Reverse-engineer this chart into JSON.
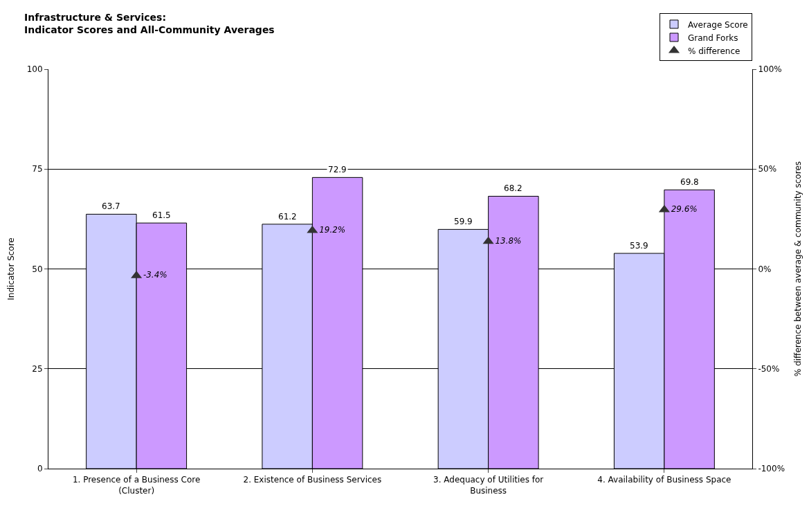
{
  "chart_data": {
    "type": "bar",
    "title": "Infrastructure & Services:\nIndicator Scores and All-Community Averages",
    "categories": [
      "1. Presence of a Business Core (Cluster)",
      "2. Existence of Business Services",
      "3. Adequacy of Utilities for Business",
      "4. Availability of Business Space"
    ],
    "series": [
      {
        "name": "Average Score",
        "color": "#ccccff",
        "values": [
          63.7,
          61.2,
          59.9,
          53.9
        ],
        "value_labels": [
          "63.7",
          "61.2",
          "59.9",
          "53.9"
        ]
      },
      {
        "name": "Grand Forks",
        "color": "#cc99ff",
        "values": [
          61.5,
          72.9,
          68.2,
          69.8
        ],
        "value_labels": [
          "61.5",
          "72.9",
          "68.2",
          "69.8"
        ]
      },
      {
        "name": "% difference",
        "type": "scatter",
        "axis": "y2",
        "marker": "triangle",
        "color": "#333333",
        "values": [
          -3.4,
          19.2,
          13.8,
          29.6
        ],
        "value_labels": [
          "-3.4%",
          "19.2%",
          "13.8%",
          "29.6%"
        ]
      }
    ],
    "ylabel": "Indicator Score",
    "y2label": "% difference between average & community scores",
    "ylim": [
      0,
      100
    ],
    "yticks": [
      0,
      25,
      50,
      75,
      100
    ],
    "y2lim": [
      -100,
      100
    ],
    "y2ticks": [
      {
        "value": -100,
        "label": "-100%"
      },
      {
        "value": -50,
        "label": "-50%"
      },
      {
        "value": 0,
        "label": "0%"
      },
      {
        "value": 50,
        "label": "50%"
      },
      {
        "value": 100,
        "label": "100%"
      }
    ],
    "grid": "y",
    "legend": "top right"
  }
}
